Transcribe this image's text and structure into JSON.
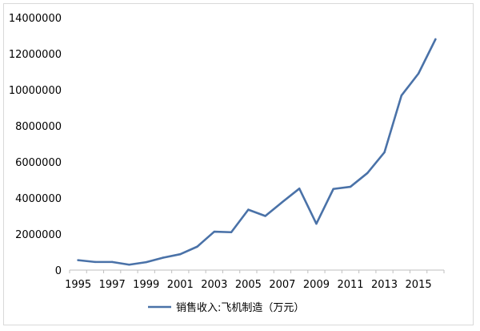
{
  "chart_data": {
    "type": "line",
    "title": "",
    "xlabel": "",
    "ylabel": "",
    "x": [
      1995,
      1996,
      1997,
      1998,
      1999,
      2000,
      2001,
      2002,
      2003,
      2004,
      2005,
      2006,
      2007,
      2008,
      2009,
      2010,
      2011,
      2012,
      2013,
      2014,
      2015,
      2016
    ],
    "x_tick_labels": [
      "1995",
      "1997",
      "1999",
      "2001",
      "2003",
      "2005",
      "2007",
      "2009",
      "2011",
      "2013",
      "2015"
    ],
    "y_tick_labels": [
      "0",
      "2000000",
      "4000000",
      "6000000",
      "8000000",
      "10000000",
      "12000000",
      "14000000"
    ],
    "ylim": [
      0,
      14000000
    ],
    "grid": false,
    "legend_position": "bottom",
    "series": [
      {
        "name": "销售收入:飞机制造（万元）",
        "color": "#4a72a8",
        "values": [
          550000,
          450000,
          450000,
          300000,
          440000,
          690000,
          880000,
          1300000,
          2130000,
          2100000,
          3350000,
          3000000,
          3770000,
          4520000,
          2570000,
          4500000,
          4620000,
          5380000,
          6530000,
          9680000,
          10900000,
          12800000
        ]
      }
    ]
  }
}
